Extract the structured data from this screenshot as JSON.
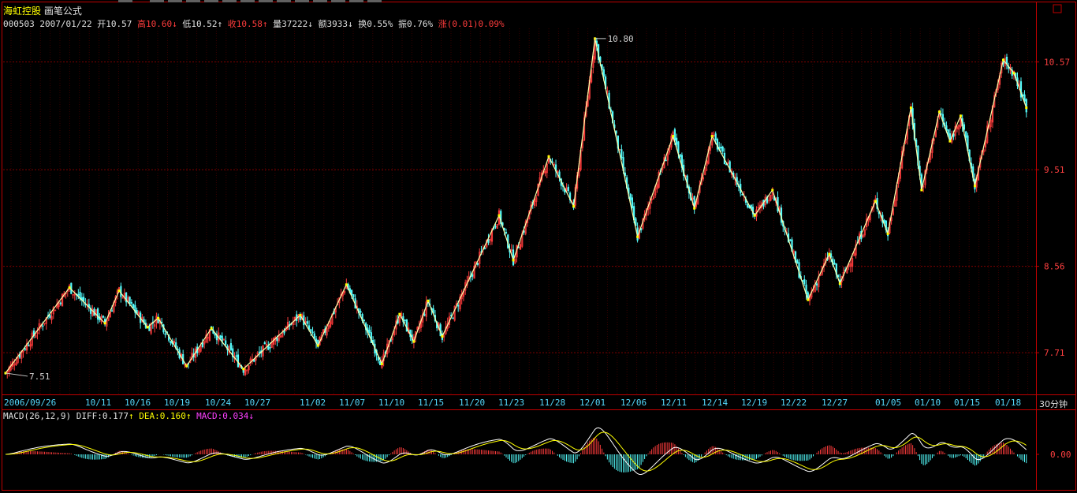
{
  "header": {
    "stock_name": "海虹控股",
    "formula": "画笔公式",
    "code": "000503",
    "date": "2007/01/22",
    "open_label": "开",
    "open": "10.57",
    "high_label": "高",
    "high": "10.60",
    "low_label": "低",
    "low": "10.52",
    "close_label": "收",
    "close": "10.58",
    "volume_label": "量",
    "volume": "37222",
    "amount_label": "额",
    "amount": "3933",
    "turnover_label": "换",
    "turnover": "0.55%",
    "amplitude_label": "振",
    "amplitude": "0.76%",
    "change_label": "涨",
    "change": "(0.01)",
    "change_pct": "0.09%",
    "down_arrow": "↓",
    "up_arrow": "↑"
  },
  "macd_header": {
    "params": "MACD(26,12,9)",
    "diff_label": "DIFF:",
    "diff": "0.177",
    "dea_label": "DEA:",
    "dea": "0.160",
    "macd_label": "MACD:",
    "macd": "0.034"
  },
  "period_label": "30分钟",
  "colors": {
    "background": "#000000",
    "up": "#ff3c3c",
    "down": "#54fcfc",
    "stroke": "#ffffaa",
    "frame": "#c00000",
    "grid": "#800000",
    "macd_diff": "#ffffff",
    "macd_dea": "#ffff00"
  },
  "chart_data": [
    {
      "type": "candlestick",
      "y_ticks": [
        7.71,
        8.56,
        9.51,
        10.57
      ],
      "ylim": [
        7.3,
        10.9
      ],
      "x_tick_labels": [
        "2006/09/26",
        "10/11",
        "10/16",
        "10/19",
        "10/24",
        "10/27",
        "11/02",
        "11/07",
        "11/10",
        "11/15",
        "11/20",
        "11/23",
        "11/28",
        "12/01",
        "12/06",
        "12/11",
        "12/14",
        "12/19",
        "12/22",
        "12/27",
        "01/05",
        "01/10",
        "01/15",
        "01/18"
      ],
      "min_label": "7.51",
      "max_label": "10.80",
      "stroke_pivots": [
        {
          "i": 0,
          "v": 7.51
        },
        {
          "i": 36,
          "v": 8.35
        },
        {
          "i": 56,
          "v": 8.0
        },
        {
          "i": 64,
          "v": 8.32
        },
        {
          "i": 80,
          "v": 7.96
        },
        {
          "i": 86,
          "v": 8.05
        },
        {
          "i": 102,
          "v": 7.58
        },
        {
          "i": 116,
          "v": 7.95
        },
        {
          "i": 134,
          "v": 7.55
        },
        {
          "i": 166,
          "v": 8.08
        },
        {
          "i": 176,
          "v": 7.78
        },
        {
          "i": 192,
          "v": 8.38
        },
        {
          "i": 212,
          "v": 7.6
        },
        {
          "i": 222,
          "v": 8.09
        },
        {
          "i": 230,
          "v": 7.82
        },
        {
          "i": 238,
          "v": 8.22
        },
        {
          "i": 246,
          "v": 7.87
        },
        {
          "i": 278,
          "v": 9.06
        },
        {
          "i": 286,
          "v": 8.62
        },
        {
          "i": 306,
          "v": 9.64
        },
        {
          "i": 320,
          "v": 9.15
        },
        {
          "i": 332,
          "v": 10.8
        },
        {
          "i": 356,
          "v": 8.85
        },
        {
          "i": 376,
          "v": 9.84
        },
        {
          "i": 388,
          "v": 9.13
        },
        {
          "i": 398,
          "v": 9.84
        },
        {
          "i": 422,
          "v": 9.06
        },
        {
          "i": 432,
          "v": 9.31
        },
        {
          "i": 452,
          "v": 8.23
        },
        {
          "i": 464,
          "v": 8.68
        },
        {
          "i": 470,
          "v": 8.39
        },
        {
          "i": 490,
          "v": 9.2
        },
        {
          "i": 497,
          "v": 8.88
        },
        {
          "i": 510,
          "v": 10.12
        },
        {
          "i": 516,
          "v": 9.31
        },
        {
          "i": 526,
          "v": 10.08
        },
        {
          "i": 532,
          "v": 9.79
        },
        {
          "i": 538,
          "v": 10.04
        },
        {
          "i": 546,
          "v": 9.35
        },
        {
          "i": 562,
          "v": 10.59
        },
        {
          "i": 568,
          "v": 10.46
        },
        {
          "i": 575,
          "v": 10.12
        }
      ]
    },
    {
      "type": "macd",
      "y_ticks": [
        0.0
      ],
      "series": [
        {
          "name": "DIFF",
          "value": 0.177
        },
        {
          "name": "DEA",
          "value": 0.16
        },
        {
          "name": "MACD",
          "value": 0.034
        }
      ]
    }
  ]
}
